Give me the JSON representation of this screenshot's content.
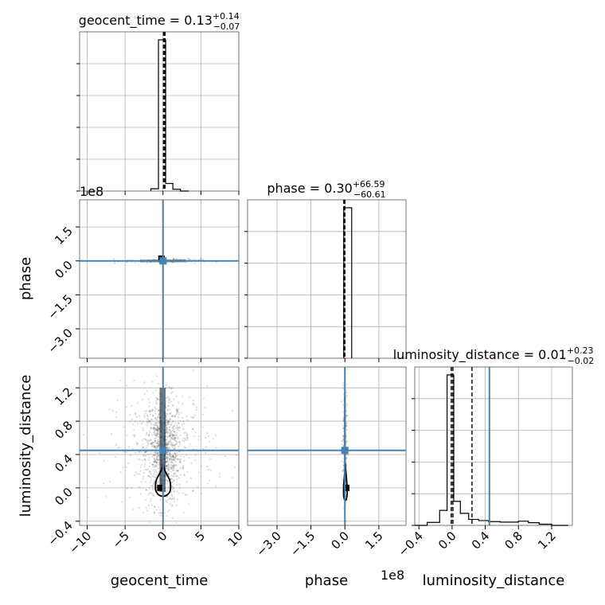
{
  "chart_data": {
    "type": "corner",
    "parameters": [
      "geocent_time",
      "phase",
      "luminosity_distance"
    ],
    "truth_color": "#4682b4",
    "truths": {
      "geocent_time": 0.0,
      "phase": 0.0,
      "luminosity_distance": 0.45
    },
    "panels": {
      "geocent_time": {
        "title": {
          "name": "geocent_time",
          "value": "0.13",
          "plus": "+0.14",
          "minus": "−0.07"
        },
        "xlim": [
          -11,
          10
        ],
        "xticks": [
          -10,
          -5,
          0,
          5,
          10
        ],
        "xtick_labels": [
          "−10",
          "−5",
          "0",
          "5",
          "10"
        ],
        "quantiles": [
          0.06,
          0.13,
          0.27
        ],
        "histogram": {
          "edges": [
            -1.6,
            -0.6,
            0.35,
            1.3,
            2.3,
            3.4
          ],
          "counts": [
            0.015,
            1.0,
            0.05,
            0.012,
            0.0
          ]
        }
      },
      "phase": {
        "title": {
          "name": "phase",
          "value": "0.30",
          "plus": "+66.59",
          "minus": "−60.61"
        },
        "offset": "1e8",
        "xlim": [
          -4.3,
          2.7
        ],
        "xticks": [
          -3.0,
          -1.5,
          0.0,
          1.5
        ],
        "xtick_labels": [
          "−3.0",
          "−1.5",
          "0.0",
          "1.5"
        ],
        "ylim": [
          -4.3,
          2.7
        ],
        "yticks": [
          1.5,
          0.0,
          -1.5,
          -3.0
        ],
        "ytick_labels": [
          "1.5",
          "0.0",
          "−1.5",
          "−3.0"
        ],
        "quantiles": [
          -0.05,
          0.0
        ],
        "histogram": {
          "edges": [
            -0.05,
            0.3
          ],
          "counts": [
            1.0
          ]
        }
      },
      "luminosity_distance": {
        "title": {
          "name": "luminosity_distance",
          "value": "0.01",
          "plus": "+0.23",
          "minus": "−0.02"
        },
        "xlim": [
          -0.45,
          1.45
        ],
        "xticks": [
          -0.4,
          0.0,
          0.4,
          0.8,
          1.2
        ],
        "xtick_labels": [
          "−0.4",
          "0.0",
          "0.4",
          "0.8",
          "1.2"
        ],
        "ylim": [
          -0.45,
          1.45
        ],
        "yticks": [
          1.2,
          0.8,
          0.4,
          0.0,
          -0.4
        ],
        "ytick_labels": [
          "1.2",
          "0.8",
          "0.4",
          "0.0",
          "−0.4"
        ],
        "quantiles": [
          -0.01,
          0.01,
          0.24
        ],
        "histogram": {
          "edges": [
            -0.45,
            -0.3,
            -0.15,
            -0.06,
            0.02,
            0.1,
            0.2,
            0.32,
            0.44,
            0.58,
            0.8,
            0.92,
            1.05,
            1.2,
            1.4
          ],
          "counts": [
            0.0,
            0.02,
            0.1,
            1.0,
            0.16,
            0.08,
            0.04,
            0.032,
            0.025,
            0.022,
            0.028,
            0.018,
            0.008,
            0.0
          ]
        }
      }
    },
    "axis_labels": {
      "x": [
        "geocent_time",
        "phase",
        "luminosity_distance"
      ],
      "y": [
        "phase",
        "luminosity_distance"
      ]
    }
  }
}
